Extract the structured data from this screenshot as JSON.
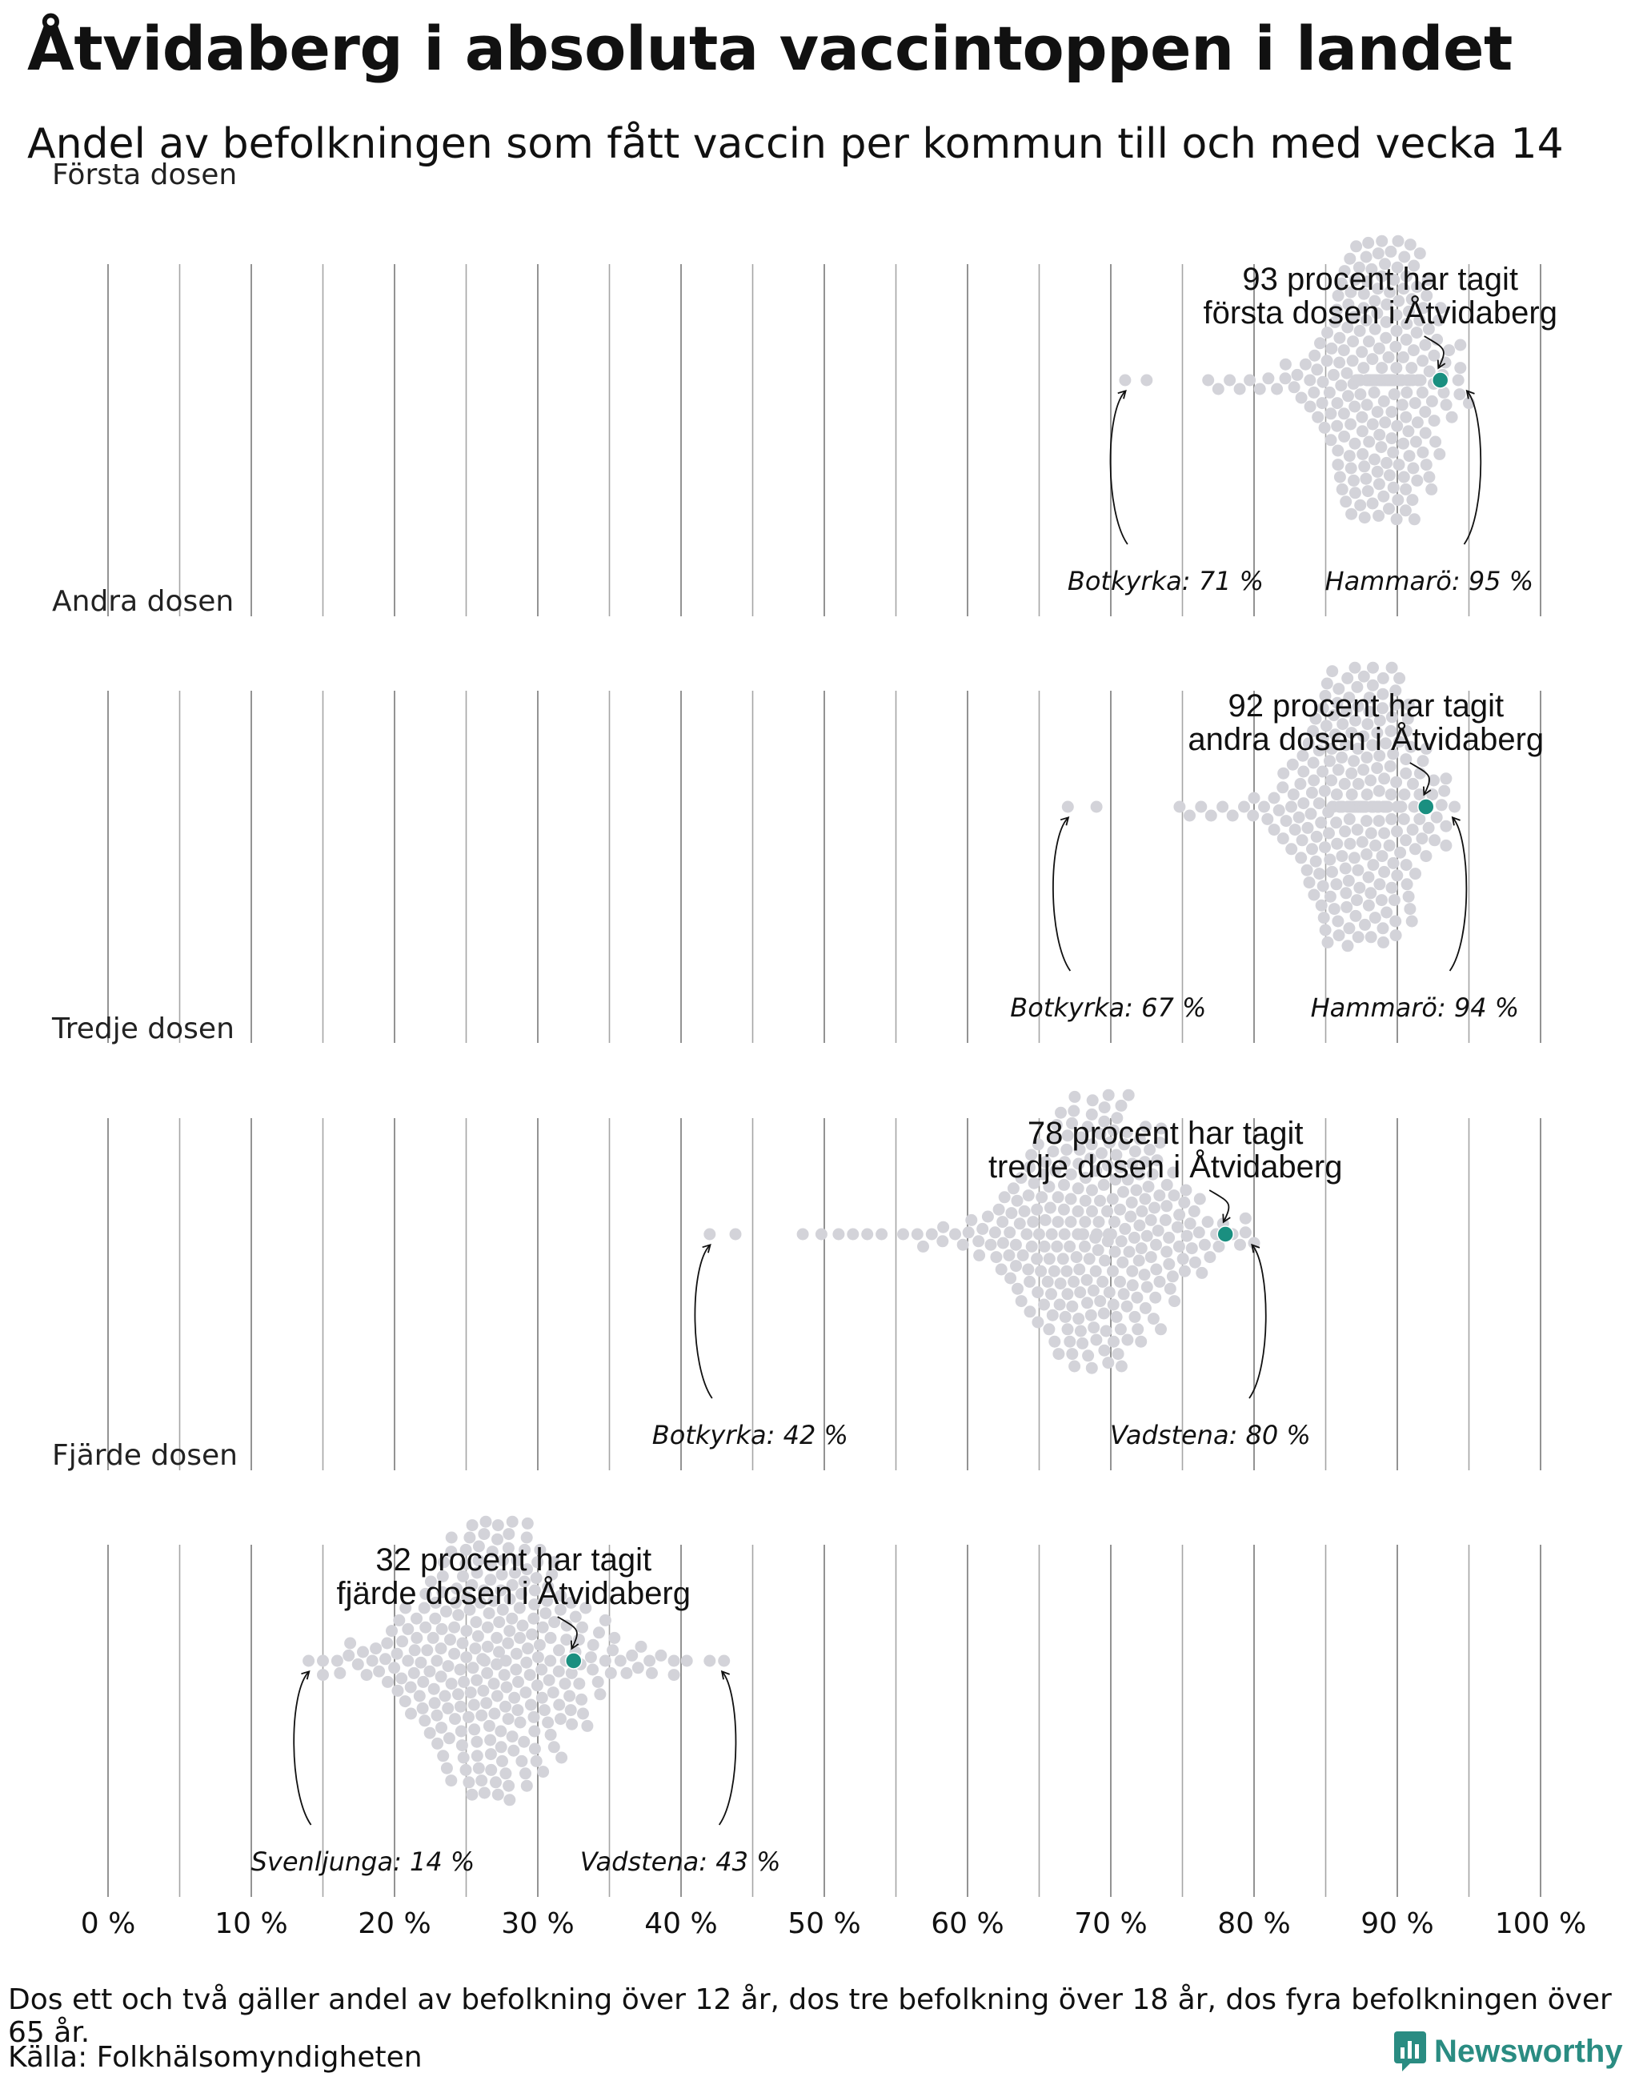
{
  "title": "Åtvidaberg i absoluta vaccintoppen i landet",
  "subtitle": "Andel av befolkningen som fått vaccin per kommun till och med vecka 14",
  "footnote": "Dos ett och två gäller andel av befolkning över 12 år, dos tre befolkning över 18 år, dos fyra befolkningen över 65 år.",
  "source": "Källa: Folkhälsomyndigheten",
  "brand": "Newsworthy",
  "colors": {
    "highlight": "#1a8f80",
    "dots": "#d3d3d9",
    "grid": "#888888"
  },
  "chart_data": {
    "type": "scatter",
    "xlim": [
      0,
      100
    ],
    "x_ticks": [
      0,
      10,
      20,
      30,
      40,
      50,
      60,
      70,
      80,
      90,
      100
    ],
    "x_tick_labels": [
      "0 %",
      "10 %",
      "20 %",
      "30 %",
      "40 %",
      "50 %",
      "60 %",
      "70 %",
      "80 %",
      "90 %",
      "100 %"
    ],
    "panels": [
      {
        "label": "Första dosen",
        "highlight": {
          "value": 93,
          "line1": "93 procent har tagit",
          "line2": "första dosen i Åtvidaberg"
        },
        "min": {
          "value": 71,
          "label": "Botkyrka: 71 %"
        },
        "max": {
          "value": 95,
          "label": "Hammarö: 95 %"
        },
        "center": 89,
        "sd": 2.3,
        "tail": [
          72.5,
          76.8,
          77.5,
          78.3,
          79.0,
          79.7,
          80.4,
          81.0,
          81.6,
          82.2,
          82.8,
          83.3,
          83.9,
          84.4
        ]
      },
      {
        "label": "Andra dosen",
        "highlight": {
          "value": 92,
          "line1": "92 procent har tagit",
          "line2": "andra dosen i Åtvidaberg"
        },
        "min": {
          "value": 67,
          "label": "Botkyrka: 67 %"
        },
        "max": {
          "value": 94,
          "label": "Hammarö: 94 %"
        },
        "center": 87.5,
        "sd": 2.6,
        "tail": [
          69.0,
          74.8,
          75.5,
          76.3,
          77.0,
          77.8,
          78.5,
          79.3,
          80.0,
          80.7,
          81.4,
          82.0,
          82.6
        ]
      },
      {
        "label": "Tredje dosen",
        "highlight": {
          "value": 78,
          "line1": "78 procent har tagit",
          "line2": "tredje dosen i Åtvidaberg"
        },
        "min": {
          "value": 42,
          "label": "Botkyrka: 42 %"
        },
        "max": {
          "value": 80,
          "label": "Vadstena: 80 %"
        },
        "center": 69,
        "sd": 4.2,
        "tail": [
          43.8,
          48.5,
          49.8,
          51.0,
          52.0,
          53.0,
          54.0,
          55.5,
          56.5,
          57.5,
          58.3
        ]
      },
      {
        "label": "Fjärde dosen",
        "highlight": {
          "value": 32.5,
          "line1": "32 procent har tagit",
          "line2": "fjärde dosen i Åtvidaberg"
        },
        "min": {
          "value": 14,
          "label": "Svenljunga: 14 %"
        },
        "max": {
          "value": 43,
          "label": "Vadstena: 43 %"
        },
        "center": 27,
        "sd": 4.3,
        "tail": [
          15.0,
          16.0,
          16.8,
          37.0,
          37.8,
          38.6,
          39.5,
          40.4,
          42.0
        ]
      }
    ]
  }
}
